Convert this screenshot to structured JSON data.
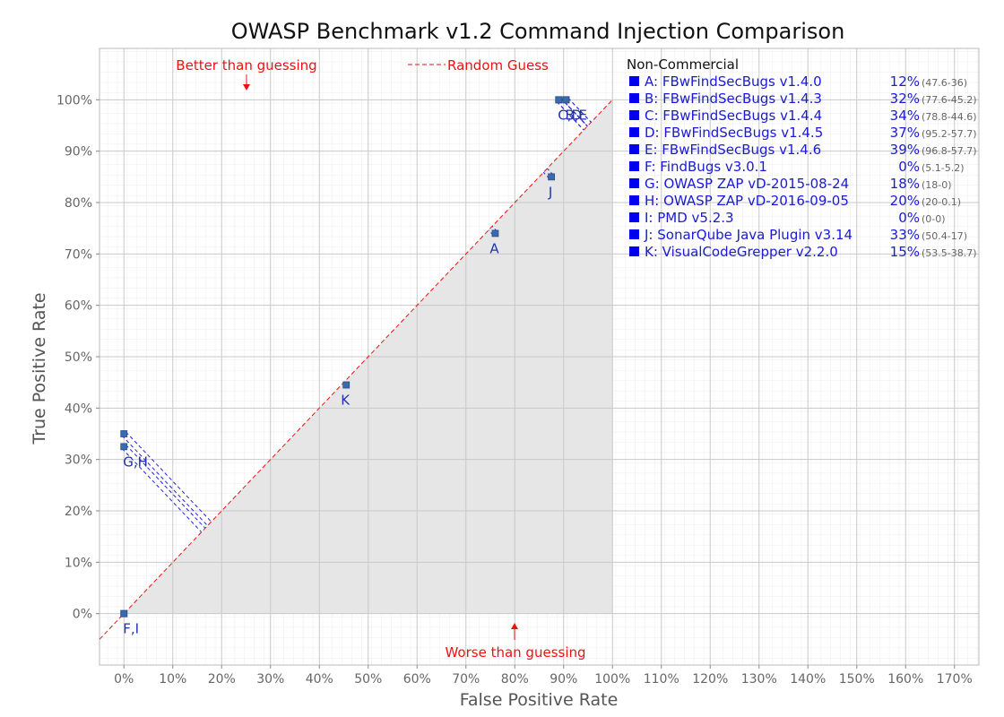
{
  "chart_data": {
    "type": "scatter",
    "title": "OWASP Benchmark v1.2 Command Injection Comparison",
    "xlabel": "False Positive Rate",
    "ylabel": "True Positive Rate",
    "xlim": [
      -5,
      175
    ],
    "ylim": [
      -10,
      110
    ],
    "x_ticks": [
      0,
      10,
      20,
      30,
      40,
      50,
      60,
      70,
      80,
      90,
      100,
      110,
      120,
      130,
      140,
      150,
      160,
      170
    ],
    "y_ticks": [
      0,
      10,
      20,
      30,
      40,
      50,
      60,
      70,
      80,
      90,
      100
    ],
    "tick_suffix": "%",
    "grid": true,
    "random_guess_label": "Random Guess",
    "annotations": {
      "better": "Better than guessing",
      "worse": "Worse than guessing"
    },
    "colors": {
      "marker": "#3a6bb0",
      "legend_square": "#0000ee",
      "legend_text": "#1a1ad6",
      "diag": "#ee1111",
      "annot": "#ee1111",
      "fill": "#e6e6e6"
    },
    "points": [
      {
        "id": "A",
        "fpr": 76,
        "tpr": 74
      },
      {
        "id": "B",
        "fpr": 90.5,
        "tpr": 100
      },
      {
        "id": "C",
        "fpr": 89,
        "tpr": 100
      },
      {
        "id": "D",
        "fpr": 89,
        "tpr": 100
      },
      {
        "id": "E",
        "fpr": 90.5,
        "tpr": 100
      },
      {
        "id": "F",
        "fpr": 0,
        "tpr": 0
      },
      {
        "id": "G",
        "fpr": 0,
        "tpr": 35
      },
      {
        "id": "H",
        "fpr": 0,
        "tpr": 32.5
      },
      {
        "id": "I",
        "fpr": 0,
        "tpr": 0
      },
      {
        "id": "J",
        "fpr": 87.5,
        "tpr": 85
      },
      {
        "id": "K",
        "fpr": 45.5,
        "tpr": 44.5
      }
    ],
    "point_labels": [
      {
        "text": "A",
        "fpr": 76,
        "tpr": 74
      },
      {
        "text": "C,D",
        "fpr": 89,
        "tpr": 100
      },
      {
        "text": "B,E",
        "fpr": 90.5,
        "tpr": 100
      },
      {
        "text": "J",
        "fpr": 87.5,
        "tpr": 85
      },
      {
        "text": "K",
        "fpr": 45.5,
        "tpr": 44.5
      },
      {
        "text": "G,H",
        "fpr": 0,
        "tpr": 32.5
      },
      {
        "text": "F,I",
        "fpr": 0,
        "tpr": 0
      }
    ],
    "legend": {
      "heading": "Non-Commercial",
      "position": "top-right",
      "entries": [
        {
          "label": "A: FBwFindSecBugs v1.4.0",
          "score": "12%",
          "detail": "(47.6-36)"
        },
        {
          "label": "B: FBwFindSecBugs v1.4.3",
          "score": "32%",
          "detail": "(77.6-45.2)"
        },
        {
          "label": "C: FBwFindSecBugs v1.4.4",
          "score": "34%",
          "detail": "(78.8-44.6)"
        },
        {
          "label": "D: FBwFindSecBugs v1.4.5",
          "score": "37%",
          "detail": "(95.2-57.7)"
        },
        {
          "label": "E: FBwFindSecBugs v1.4.6",
          "score": "39%",
          "detail": "(96.8-57.7)"
        },
        {
          "label": "F: FindBugs v3.0.1",
          "score": "0%",
          "detail": "(5.1-5.2)"
        },
        {
          "label": "G: OWASP ZAP vD-2015-08-24",
          "score": "18%",
          "detail": "(18-0)"
        },
        {
          "label": "H: OWASP ZAP vD-2016-09-05",
          "score": "20%",
          "detail": "(20-0.1)"
        },
        {
          "label": "I:   PMD v5.2.3",
          "score": "0%",
          "detail": "(0-0)"
        },
        {
          "label": "J:  SonarQube Java Plugin v3.14",
          "score": "33%",
          "detail": "(50.4-17)"
        },
        {
          "label": "K: VisualCodeGrepper v2.2.0",
          "score": "15%",
          "detail": "(53.5-38.7)"
        }
      ]
    }
  }
}
